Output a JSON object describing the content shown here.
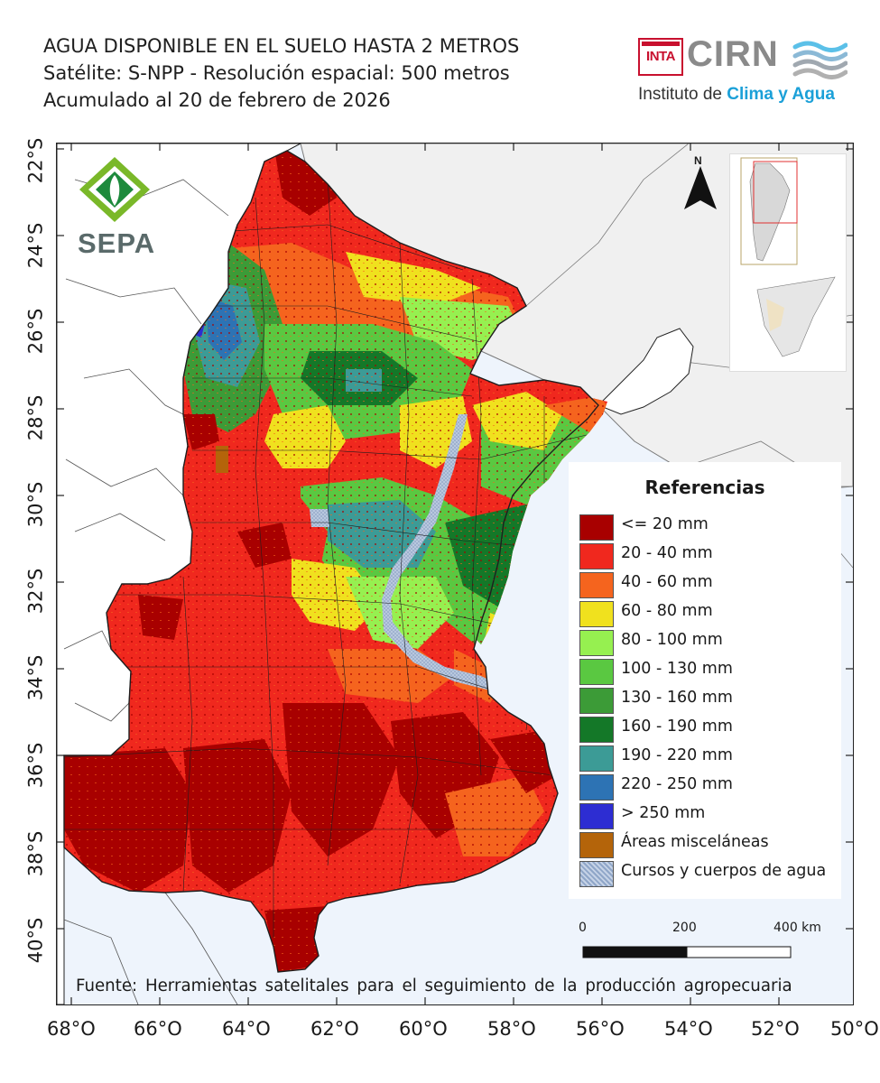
{
  "title": {
    "line1": "AGUA DISPONIBLE EN EL SUELO HASTA 2 METROS",
    "line2": "Satélite: S-NPP - Resolución espacial: 500 metros",
    "line3": "Acumulado al 20 de febrero de 2026"
  },
  "logos": {
    "inta": "INTA",
    "cirn": "CIRN",
    "institute_prefix": "Instituto de",
    "institute_highlight": "Clima y Agua",
    "sepa": "SEPA"
  },
  "north_label": "N",
  "lat_labels": [
    "22°S",
    "24°S",
    "26°S",
    "28°S",
    "30°S",
    "32°S",
    "34°S",
    "36°S",
    "38°S",
    "40°S"
  ],
  "lon_labels": [
    "68°O",
    "66°O",
    "64°O",
    "62°O",
    "60°O",
    "58°O",
    "56°O",
    "54°O",
    "52°O",
    "50°O"
  ],
  "legend": {
    "title": "Referencias",
    "items": [
      {
        "label": "<= 20 mm",
        "color": "#a80000"
      },
      {
        "label": "20 - 40 mm",
        "color": "#f0281e"
      },
      {
        "label": "40 - 60 mm",
        "color": "#f5641e"
      },
      {
        "label": "60 - 80 mm",
        "color": "#f0e11e"
      },
      {
        "label": "80 - 100 mm",
        "color": "#96f050"
      },
      {
        "label": "100 - 130 mm",
        "color": "#5ac841"
      },
      {
        "label": "130 - 160 mm",
        "color": "#3c9b37"
      },
      {
        "label": "160 - 190 mm",
        "color": "#147828"
      },
      {
        "label": "190 - 220 mm",
        "color": "#3c9b96"
      },
      {
        "label": "220 - 250 mm",
        "color": "#2d73b4"
      },
      {
        "label": "> 250 mm",
        "color": "#2d2dd2"
      },
      {
        "label": "Áreas misceláneas",
        "color": "#b4640a"
      },
      {
        "label": "Cursos y cuerpos de agua",
        "color": "#a0b4d2"
      }
    ]
  },
  "scale": {
    "labels": [
      "0",
      "200",
      "400 km"
    ]
  },
  "source": "Fuente: Herramientas satelitales para el seguimiento de la producción agropecuaria",
  "colors": {
    "sea": "#eef4fc",
    "neighbor_land": "#f0f0f0",
    "border": "#1e1e1e"
  }
}
